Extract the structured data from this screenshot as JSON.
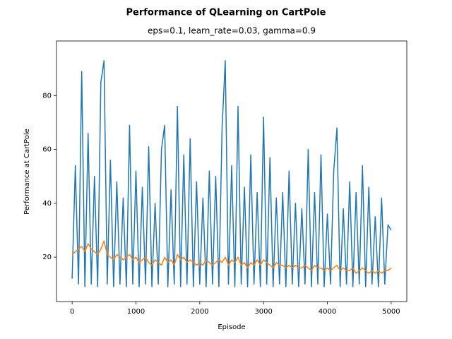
{
  "chart_data": {
    "type": "line",
    "title": "Performance of QLearning on CartPole",
    "subtitle": "eps=0.1, learn_rate=0.03, gamma=0.9",
    "xlabel": "Episode",
    "ylabel": "Performance at CartPole",
    "x": [
      0,
      50,
      100,
      150,
      200,
      250,
      300,
      350,
      400,
      450,
      500,
      550,
      600,
      650,
      700,
      750,
      800,
      850,
      900,
      950,
      1000,
      1050,
      1100,
      1150,
      1200,
      1250,
      1300,
      1350,
      1400,
      1450,
      1500,
      1550,
      1600,
      1650,
      1700,
      1750,
      1800,
      1850,
      1900,
      1950,
      2000,
      2050,
      2100,
      2150,
      2200,
      2250,
      2300,
      2350,
      2400,
      2450,
      2500,
      2550,
      2600,
      2650,
      2700,
      2750,
      2800,
      2850,
      2900,
      2950,
      3000,
      3050,
      3100,
      3150,
      3200,
      3250,
      3300,
      3350,
      3400,
      3450,
      3500,
      3550,
      3600,
      3650,
      3700,
      3750,
      3800,
      3850,
      3900,
      3950,
      4000,
      4050,
      4100,
      4150,
      4200,
      4250,
      4300,
      4350,
      4400,
      4450,
      4500,
      4550,
      4600,
      4650,
      4700,
      4750,
      4800,
      4850,
      4900,
      4950,
      5000
    ],
    "series": [
      {
        "color": "#1f77b4",
        "values": [
          12,
          54,
          10,
          89,
          9,
          66,
          10,
          50,
          9,
          85,
          93,
          10,
          56,
          9,
          48,
          10,
          42,
          9,
          69,
          10,
          52,
          9,
          46,
          10,
          61,
          9,
          40,
          10,
          60,
          69,
          9,
          45,
          10,
          76,
          9,
          58,
          10,
          64,
          9,
          48,
          10,
          42,
          9,
          52,
          10,
          50,
          9,
          68,
          93,
          10,
          54,
          9,
          76,
          10,
          46,
          9,
          58,
          10,
          44,
          9,
          72,
          10,
          57,
          9,
          42,
          10,
          44,
          9,
          52,
          10,
          40,
          9,
          38,
          10,
          60,
          9,
          44,
          10,
          58,
          9,
          36,
          10,
          52,
          68,
          9,
          38,
          10,
          48,
          9,
          44,
          10,
          54,
          9,
          46,
          10,
          35,
          9,
          42,
          10,
          32,
          30
        ]
      },
      {
        "color": "#ff7f0e",
        "values": [
          21,
          22,
          23,
          24,
          22,
          25,
          23,
          22,
          21,
          23,
          26,
          21,
          20,
          19,
          21,
          20,
          19,
          20,
          21,
          19,
          20,
          18,
          19,
          20,
          18,
          17,
          19,
          18,
          17,
          20,
          18,
          19,
          17,
          21,
          19,
          20,
          18,
          19,
          18,
          17,
          18,
          17,
          19,
          18,
          17,
          18,
          19,
          18,
          20,
          17,
          19,
          18,
          20,
          17,
          18,
          16,
          18,
          17,
          19,
          17,
          19,
          18,
          17,
          16,
          18,
          17,
          17,
          16,
          17,
          16,
          17,
          16,
          16,
          17,
          16,
          15,
          17,
          16,
          16,
          15,
          16,
          15,
          16,
          17,
          15,
          16,
          15,
          15,
          16,
          14,
          15,
          16,
          15,
          14,
          15,
          14,
          15,
          14,
          15,
          15,
          16
        ]
      }
    ],
    "xlim": [
      -245,
      5245
    ],
    "ylim": [
      3.5,
      100.3
    ],
    "xticks": [
      0,
      1000,
      2000,
      3000,
      4000,
      5000
    ],
    "yticks": [
      20,
      40,
      60,
      80
    ],
    "grid": false
  }
}
